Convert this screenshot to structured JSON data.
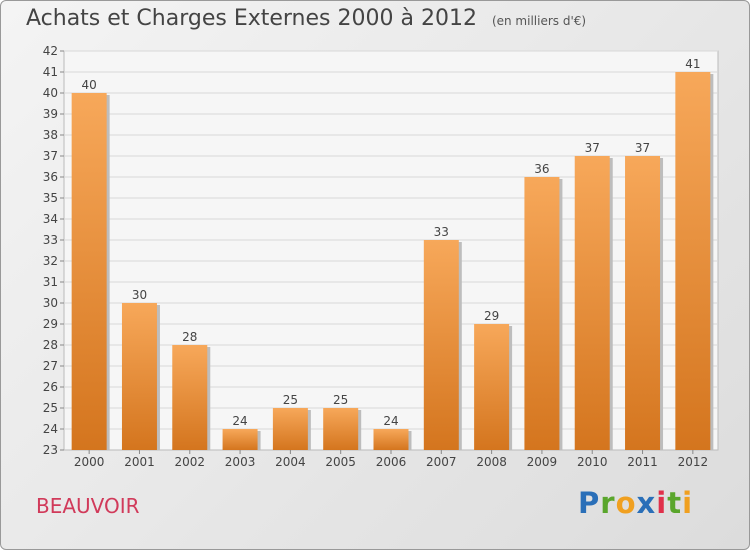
{
  "header": {
    "title": "Achats et Charges Externes 2000 à 2012",
    "unit": "(en milliers d'€)"
  },
  "footer": {
    "town": "BEAUVOIR",
    "brand_letters": [
      {
        "ch": "P",
        "color": "#2a6fb8"
      },
      {
        "ch": "r",
        "color": "#5aa62c"
      },
      {
        "ch": "o",
        "color": "#f0a020"
      },
      {
        "ch": "x",
        "color": "#2a6fb8"
      },
      {
        "ch": "i",
        "color": "#e0304a"
      },
      {
        "ch": "t",
        "color": "#5aa62c"
      },
      {
        "ch": "i",
        "color": "#f0a020"
      }
    ]
  },
  "chart_data": {
    "type": "bar",
    "categories": [
      "2000",
      "2001",
      "2002",
      "2003",
      "2004",
      "2005",
      "2006",
      "2007",
      "2008",
      "2009",
      "2010",
      "2011",
      "2012"
    ],
    "values": [
      40,
      30,
      28,
      24,
      25,
      25,
      24,
      33,
      29,
      36,
      37,
      37,
      41
    ],
    "ylim": [
      23,
      42
    ],
    "yticks": [
      23,
      24,
      25,
      26,
      27,
      28,
      29,
      30,
      31,
      32,
      33,
      34,
      35,
      36,
      37,
      38,
      39,
      40,
      41,
      42
    ],
    "grid": true,
    "bar_color_top": "#f7a85a",
    "bar_color_bottom": "#d4751e"
  }
}
